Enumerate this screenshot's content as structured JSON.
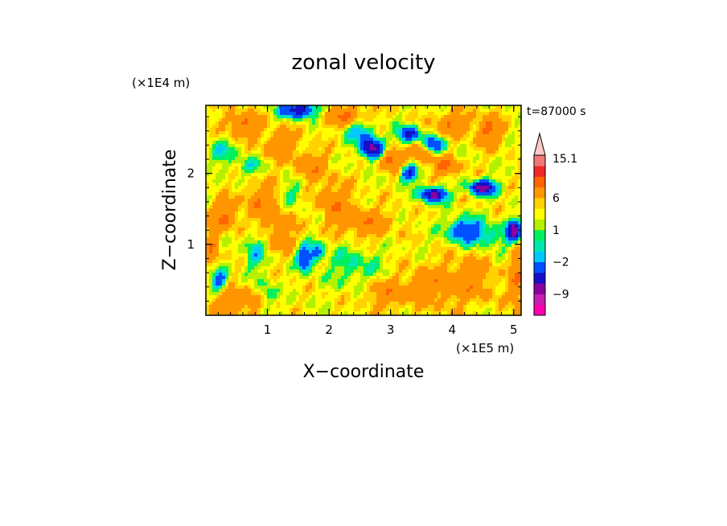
{
  "chart_data": {
    "type": "heatmap",
    "title": "zonal velocity",
    "xlabel": "X−coordinate",
    "ylabel": "Z−coordinate",
    "x_unit": "(×1E5 m)",
    "y_unit": "(×1E4 m)",
    "time_label": "t=87000 s",
    "xlim": [
      0,
      5.12
    ],
    "ylim": [
      0,
      2.96
    ],
    "x_ticks": [
      1,
      2,
      3,
      4,
      5
    ],
    "y_ticks": [
      1,
      2
    ],
    "x_tick_labels": [
      "1",
      "2",
      "3",
      "4",
      "5"
    ],
    "y_tick_labels": [
      "1",
      "2"
    ],
    "colorbar": {
      "levels": [
        -15,
        -12,
        -9,
        -6,
        -3,
        -2,
        -1,
        0,
        1,
        2,
        3,
        6,
        9,
        12,
        15.1
      ],
      "colors": [
        "#ff00b0",
        "#c81eb4",
        "#8c00a0",
        "#1410c8",
        "#0050ff",
        "#00c8ff",
        "#00e8b0",
        "#00f060",
        "#b4f000",
        "#ffff00",
        "#ffd200",
        "#ff9600",
        "#ff6400",
        "#f02828",
        "#f07878",
        "#fac8c8"
      ],
      "tick_labels": [
        "15.1",
        "6",
        "1",
        "−2",
        "−9"
      ],
      "tick_values": [
        15.1,
        6,
        1,
        -2,
        -9
      ],
      "extend": "max"
    },
    "features": [
      {
        "x": 0.3,
        "z": 1.4,
        "u": 4.5,
        "sx": 0.15,
        "sz": 0.15
      },
      {
        "x": 0.1,
        "z": 0.9,
        "u": 4.0,
        "sx": 0.08,
        "sz": 0.25
      },
      {
        "x": 0.2,
        "z": 0.5,
        "u": -7.0,
        "sx": 0.1,
        "sz": 0.12
      },
      {
        "x": 0.25,
        "z": 2.3,
        "u": -3.0,
        "sx": 0.15,
        "sz": 0.12
      },
      {
        "x": 0.6,
        "z": 2.7,
        "u": 4.5,
        "sx": 0.2,
        "sz": 0.12
      },
      {
        "x": 0.7,
        "z": 2.1,
        "u": -3.0,
        "sx": 0.15,
        "sz": 0.1
      },
      {
        "x": 0.8,
        "z": 0.9,
        "u": -3.5,
        "sx": 0.12,
        "sz": 0.2
      },
      {
        "x": 0.9,
        "z": 1.6,
        "u": 3.5,
        "sx": 0.2,
        "sz": 0.2
      },
      {
        "x": 1.0,
        "z": 0.3,
        "u": -3.0,
        "sx": 0.1,
        "sz": 0.15
      },
      {
        "x": 1.2,
        "z": 2.4,
        "u": 3.5,
        "sx": 0.2,
        "sz": 0.15
      },
      {
        "x": 1.4,
        "z": 1.7,
        "u": -2.5,
        "sx": 0.12,
        "sz": 0.15
      },
      {
        "x": 1.5,
        "z": 2.9,
        "u": -10.0,
        "sx": 0.2,
        "sz": 0.08
      },
      {
        "x": 1.6,
        "z": 0.8,
        "u": -8.0,
        "sx": 0.08,
        "sz": 0.12
      },
      {
        "x": 1.8,
        "z": 0.9,
        "u": -5.0,
        "sx": 0.08,
        "sz": 0.1
      },
      {
        "x": 1.7,
        "z": 2.1,
        "u": 3.5,
        "sx": 0.2,
        "sz": 0.15
      },
      {
        "x": 2.1,
        "z": 1.6,
        "u": 3.5,
        "sx": 0.2,
        "sz": 0.2
      },
      {
        "x": 2.3,
        "z": 2.8,
        "u": 5.0,
        "sx": 0.25,
        "sz": 0.1
      },
      {
        "x": 2.5,
        "z": 2.6,
        "u": -5.0,
        "sx": 0.15,
        "sz": 0.12
      },
      {
        "x": 2.7,
        "z": 2.35,
        "u": -12.0,
        "sx": 0.12,
        "sz": 0.1
      },
      {
        "x": 2.6,
        "z": 1.3,
        "u": 3.5,
        "sx": 0.3,
        "sz": 0.15
      },
      {
        "x": 2.4,
        "z": 0.7,
        "u": -2.5,
        "sx": 0.3,
        "sz": 0.2
      },
      {
        "x": 3.0,
        "z": 2.2,
        "u": 5.5,
        "sx": 0.15,
        "sz": 0.1
      },
      {
        "x": 3.3,
        "z": 2.55,
        "u": -9.0,
        "sx": 0.12,
        "sz": 0.08
      },
      {
        "x": 3.3,
        "z": 2.0,
        "u": -8.0,
        "sx": 0.1,
        "sz": 0.08
      },
      {
        "x": 3.5,
        "z": 2.3,
        "u": 5.0,
        "sx": 0.12,
        "sz": 0.1
      },
      {
        "x": 3.7,
        "z": 2.4,
        "u": -8.0,
        "sx": 0.12,
        "sz": 0.08
      },
      {
        "x": 3.7,
        "z": 1.7,
        "u": -12.0,
        "sx": 0.15,
        "sz": 0.07
      },
      {
        "x": 3.9,
        "z": 2.1,
        "u": 5.0,
        "sx": 0.15,
        "sz": 0.1
      },
      {
        "x": 4.0,
        "z": 2.7,
        "u": 4.0,
        "sx": 0.2,
        "sz": 0.12
      },
      {
        "x": 4.5,
        "z": 1.8,
        "u": -12.0,
        "sx": 0.15,
        "sz": 0.07
      },
      {
        "x": 4.6,
        "z": 2.6,
        "u": 5.0,
        "sx": 0.15,
        "sz": 0.15
      },
      {
        "x": 4.2,
        "z": 1.2,
        "u": -7.0,
        "sx": 0.2,
        "sz": 0.12
      },
      {
        "x": 4.6,
        "z": 1.1,
        "u": -3.0,
        "sx": 0.25,
        "sz": 0.12
      },
      {
        "x": 4.3,
        "z": 0.5,
        "u": 3.0,
        "sx": 0.3,
        "sz": 0.25
      },
      {
        "x": 5.0,
        "z": 1.2,
        "u": -12.0,
        "sx": 0.08,
        "sz": 0.1
      },
      {
        "x": 5.05,
        "z": 0.5,
        "u": 4.0,
        "sx": 0.08,
        "sz": 0.3
      },
      {
        "x": 3.6,
        "z": 0.4,
        "u": 3.0,
        "sx": 0.3,
        "sz": 0.2
      },
      {
        "x": 0.5,
        "z": 0.2,
        "u": 3.5,
        "sx": 0.3,
        "sz": 0.15
      },
      {
        "x": 2.9,
        "z": 0.3,
        "u": 3.0,
        "sx": 0.25,
        "sz": 0.15
      },
      {
        "x": 1.2,
        "z": 1.2,
        "u": 3.0,
        "sx": 0.2,
        "sz": 0.2
      }
    ]
  }
}
